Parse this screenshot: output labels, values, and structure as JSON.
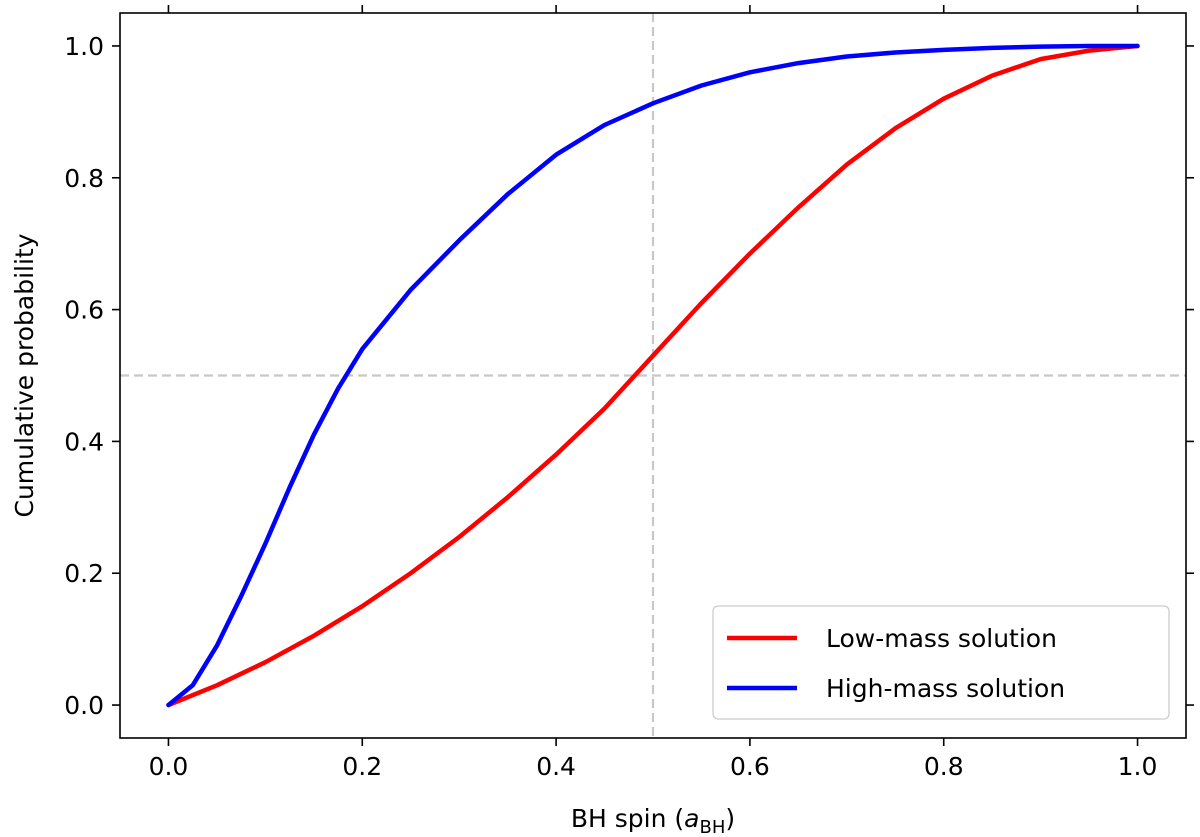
{
  "chart_data": {
    "type": "line",
    "xlabel": "BH spin (a_BH)",
    "xlabel_main": "BH spin (",
    "xlabel_symbol": "a",
    "xlabel_sub": "BH",
    "xlabel_close": ")",
    "ylabel": "Cumulative probability",
    "xlim": [
      -0.05,
      1.05
    ],
    "ylim": [
      -0.05,
      1.05
    ],
    "x_ticks": [
      "0.0",
      "0.2",
      "0.4",
      "0.6",
      "0.8",
      "1.0"
    ],
    "y_ticks": [
      "0.0",
      "0.2",
      "0.4",
      "0.6",
      "0.8",
      "1.0"
    ],
    "grid": false,
    "legend_position": "lower-right",
    "reference_lines": {
      "vertical_x": 0.5,
      "horizontal_y": 0.5,
      "color": "#c8c8c8",
      "style": "dashed"
    },
    "series": [
      {
        "name": "Low-mass solution",
        "color": "#ff0000",
        "x": [
          0.0,
          0.05,
          0.1,
          0.15,
          0.2,
          0.25,
          0.3,
          0.35,
          0.4,
          0.45,
          0.5,
          0.55,
          0.6,
          0.65,
          0.7,
          0.75,
          0.8,
          0.85,
          0.9,
          0.95,
          1.0
        ],
        "y": [
          0.0,
          0.03,
          0.065,
          0.105,
          0.15,
          0.2,
          0.255,
          0.315,
          0.38,
          0.45,
          0.53,
          0.61,
          0.685,
          0.755,
          0.82,
          0.875,
          0.92,
          0.955,
          0.98,
          0.993,
          1.0
        ]
      },
      {
        "name": "High-mass solution",
        "color": "#0000ff",
        "x": [
          0.0,
          0.025,
          0.05,
          0.075,
          0.1,
          0.125,
          0.15,
          0.175,
          0.2,
          0.25,
          0.3,
          0.35,
          0.4,
          0.45,
          0.5,
          0.55,
          0.6,
          0.65,
          0.7,
          0.75,
          0.8,
          0.85,
          0.9,
          0.95,
          1.0
        ],
        "y": [
          0.0,
          0.03,
          0.09,
          0.165,
          0.245,
          0.33,
          0.41,
          0.48,
          0.54,
          0.63,
          0.705,
          0.775,
          0.835,
          0.88,
          0.913,
          0.94,
          0.96,
          0.974,
          0.984,
          0.99,
          0.994,
          0.997,
          0.999,
          1.0,
          1.0
        ]
      }
    ]
  }
}
